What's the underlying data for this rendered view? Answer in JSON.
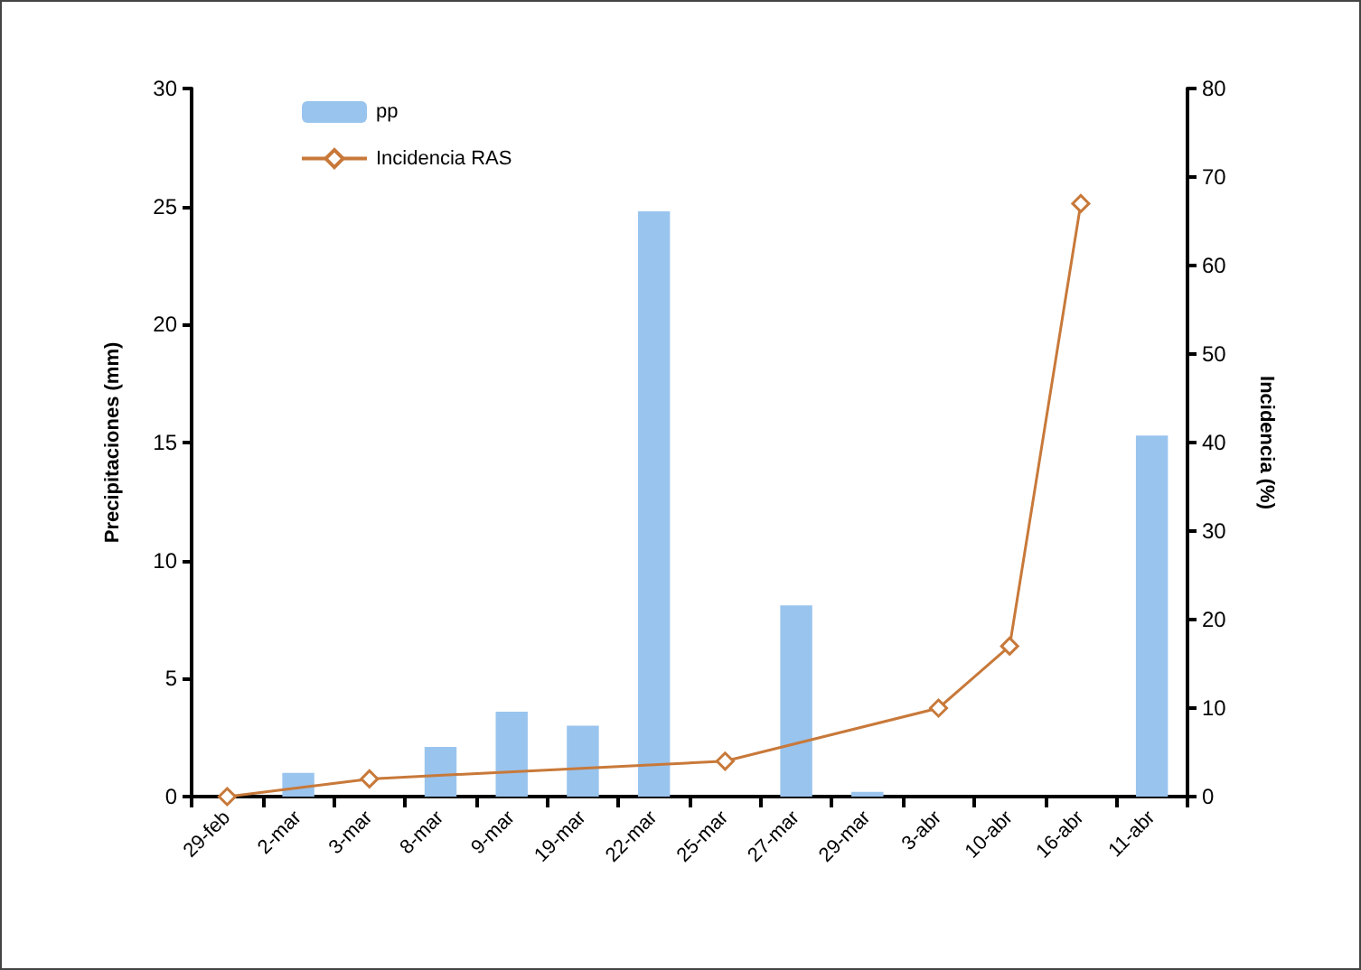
{
  "chart_data": {
    "type": "bar",
    "ylabel": "Precipitaciones (mm)",
    "y2label": "Incidencia (%)",
    "categories": [
      "29-feb",
      "2-mar",
      "3-mar",
      "8-mar",
      "9-mar",
      "19-mar",
      "22-mar",
      "25-mar",
      "27-mar",
      "29-mar",
      "3-abr",
      "10-abr",
      "16-abr",
      "11-abr"
    ],
    "series": [
      {
        "name": "pp",
        "color": "#99c4ee",
        "values": [
          0,
          1.0,
          0,
          2.1,
          3.6,
          3.0,
          24.8,
          0,
          8.1,
          0.2,
          0,
          0,
          0,
          15.3
        ]
      },
      {
        "name": "Incidencia RAS",
        "type": "line",
        "axis": "y2",
        "color": "#c8793a",
        "marker": "diamond",
        "values": [
          0,
          null,
          2,
          null,
          null,
          null,
          null,
          4,
          null,
          null,
          10,
          17,
          67,
          null
        ]
      }
    ],
    "ylim": [
      0,
      30
    ],
    "yticks": [
      0,
      5,
      10,
      15,
      20,
      25,
      30
    ],
    "y2lim": [
      0,
      80
    ],
    "y2ticks": [
      0,
      10,
      20,
      30,
      40,
      50,
      60,
      70,
      80
    ],
    "grid": false,
    "legend": "top left"
  }
}
